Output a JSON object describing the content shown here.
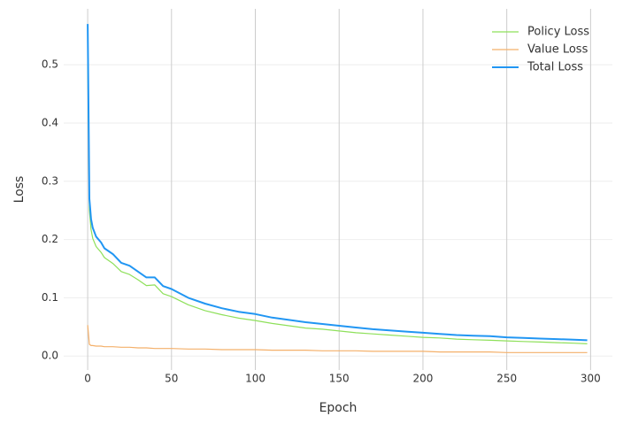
{
  "chart_data": {
    "type": "line",
    "x_label": "Epoch",
    "y_label": "Loss",
    "x": [
      0,
      1,
      2,
      3,
      5,
      8,
      10,
      15,
      20,
      25,
      30,
      35,
      40,
      45,
      50,
      60,
      70,
      80,
      90,
      100,
      110,
      120,
      130,
      140,
      150,
      160,
      170,
      180,
      190,
      200,
      210,
      220,
      230,
      240,
      250,
      260,
      270,
      280,
      290,
      298
    ],
    "series": [
      {
        "name": "Policy Loss",
        "color": "#8ee05a",
        "width": 1.2,
        "values": [
          0.517,
          0.25,
          0.217,
          0.202,
          0.188,
          0.178,
          0.169,
          0.159,
          0.145,
          0.14,
          0.131,
          0.121,
          0.122,
          0.107,
          0.102,
          0.088,
          0.078,
          0.071,
          0.065,
          0.061,
          0.056,
          0.052,
          0.048,
          0.046,
          0.043,
          0.04,
          0.038,
          0.036,
          0.034,
          0.032,
          0.031,
          0.029,
          0.028,
          0.027,
          0.026,
          0.025,
          0.024,
          0.023,
          0.022,
          0.021
        ]
      },
      {
        "name": "Value Loss",
        "color": "#f4b06a",
        "width": 1.2,
        "values": [
          0.053,
          0.02,
          0.018,
          0.018,
          0.017,
          0.017,
          0.016,
          0.016,
          0.015,
          0.015,
          0.014,
          0.014,
          0.013,
          0.013,
          0.013,
          0.012,
          0.012,
          0.011,
          0.011,
          0.011,
          0.01,
          0.01,
          0.01,
          0.009,
          0.009,
          0.009,
          0.008,
          0.008,
          0.008,
          0.008,
          0.007,
          0.007,
          0.007,
          0.007,
          0.006,
          0.006,
          0.006,
          0.006,
          0.006,
          0.006
        ]
      },
      {
        "name": "Total Loss",
        "color": "#2196f3",
        "width": 2,
        "values": [
          0.57,
          0.27,
          0.235,
          0.22,
          0.205,
          0.195,
          0.185,
          0.175,
          0.16,
          0.155,
          0.145,
          0.135,
          0.135,
          0.12,
          0.115,
          0.1,
          0.09,
          0.082,
          0.076,
          0.072,
          0.066,
          0.062,
          0.058,
          0.055,
          0.052,
          0.049,
          0.046,
          0.044,
          0.042,
          0.04,
          0.038,
          0.036,
          0.035,
          0.034,
          0.032,
          0.031,
          0.03,
          0.029,
          0.028,
          0.027
        ]
      }
    ],
    "xlim": [
      -14.3,
      313
    ],
    "ylim": [
      -0.024,
      0.596
    ],
    "xticks": [
      0,
      50,
      100,
      150,
      200,
      250,
      300
    ],
    "yticks": [
      {
        "value": 0,
        "label": "0.0"
      },
      0.1,
      0.2,
      0.3,
      0.4,
      0.5
    ],
    "grid": true,
    "legend": "upper right"
  }
}
